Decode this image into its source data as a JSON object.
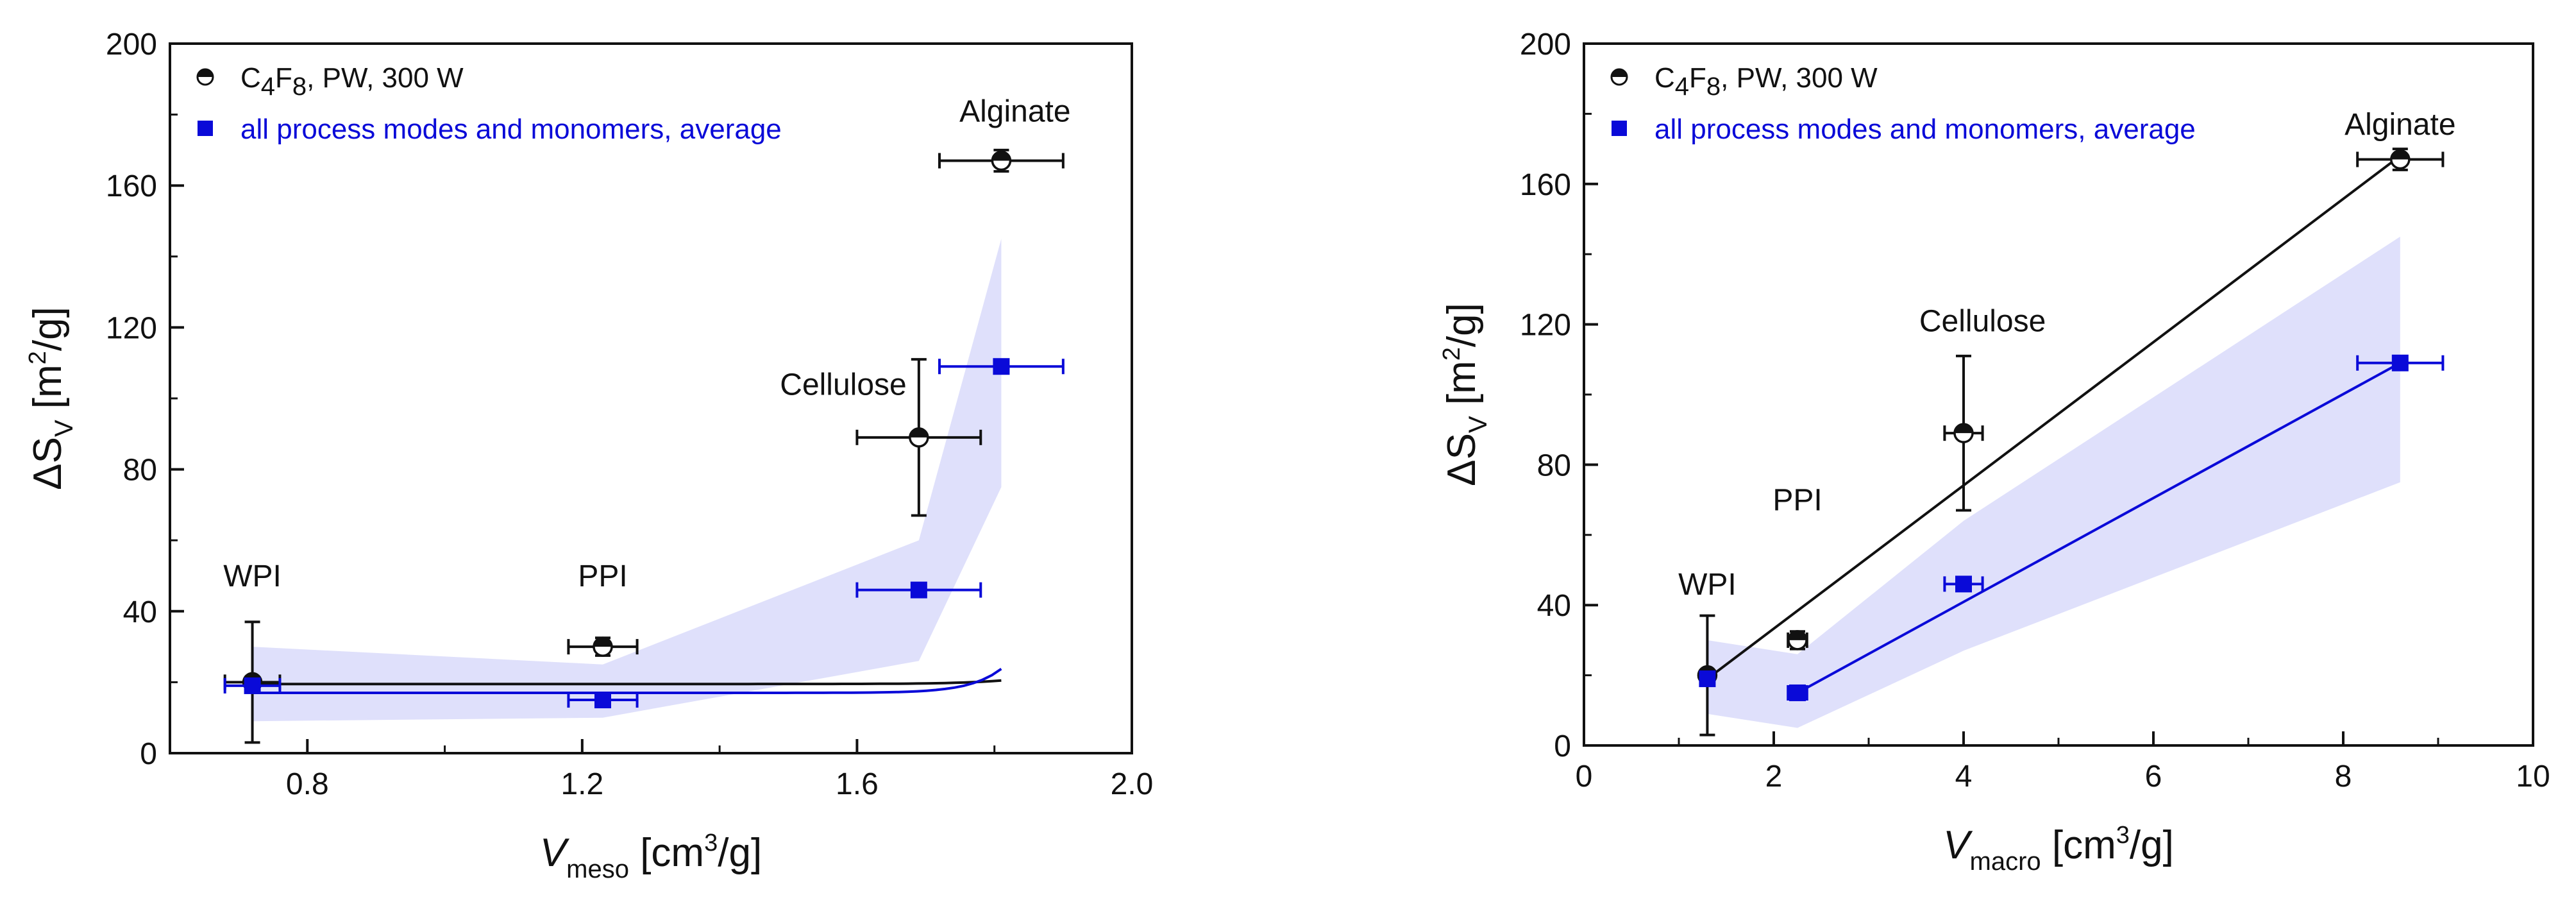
{
  "chart_data": [
    {
      "type": "scatter",
      "title": "",
      "xlabel": {
        "main": "V",
        "sub": "meso",
        "rest": " [cm",
        "sup": "3",
        "tail": "/g]"
      },
      "ylabel": {
        "main": "ΔS",
        "sub": "V",
        "rest": " [m",
        "sup": "2",
        "tail": "/g]"
      },
      "xlim": [
        0.6,
        2.0
      ],
      "ylim": [
        0,
        200
      ],
      "xticks": [
        0.8,
        1.2,
        1.6,
        2.0
      ],
      "xtick_labels": [
        "0.8",
        "1.2",
        "1.6",
        "2.0"
      ],
      "yticks": [
        0,
        40,
        80,
        120,
        160,
        200
      ],
      "ytick_labels": [
        "0",
        "40",
        "80",
        "120",
        "160",
        "200"
      ],
      "grid": false,
      "legend_position": "top-left",
      "legend": [
        {
          "key": "c4f8",
          "label_pre": "C",
          "sub1": "4",
          "mid": "F",
          "sub2": "8",
          "label_post": ", PW, 300 W",
          "color": "#111111",
          "marker": "half-circle"
        },
        {
          "key": "avg",
          "label": "all process modes and monomers, average",
          "color": "#0a0ad8",
          "marker": "square"
        }
      ],
      "annotations": [
        {
          "text": "WPI",
          "x": 0.72,
          "y": 47
        },
        {
          "text": "PPI",
          "x": 1.23,
          "y": 47
        },
        {
          "text": "Cellulose",
          "x": 1.58,
          "y": 101
        },
        {
          "text": "Alginate",
          "x": 1.83,
          "y": 178
        }
      ],
      "series": [
        {
          "name": "C4F8, PW, 300 W",
          "color": "#111111",
          "marker": "half-circle",
          "points": [
            {
              "label": "WPI",
              "x": 0.72,
              "y": 20,
              "xerr": 0.04,
              "yerr": 17
            },
            {
              "label": "PPI",
              "x": 1.23,
              "y": 30,
              "xerr": 0.05,
              "yerr": 2.5
            },
            {
              "label": "Cellulose",
              "x": 1.69,
              "y": 89,
              "xerr": 0.09,
              "yerr": 22
            },
            {
              "label": "Alginate",
              "x": 1.81,
              "y": 167,
              "xerr": 0.09,
              "yerr": 3
            }
          ],
          "fit": {
            "type": "exponential",
            "base": 19.5,
            "amp": 2.2e-13,
            "rate": 16.1,
            "x_from": 0.72,
            "x_to": 1.81
          }
        },
        {
          "name": "all process modes and monomers, average",
          "color": "#0a0ad8",
          "marker": "square",
          "points": [
            {
              "label": "WPI",
              "x": 0.72,
              "y": 19,
              "xerr": 0.04,
              "yerr": 0
            },
            {
              "label": "PPI",
              "x": 1.23,
              "y": 15,
              "xerr": 0.05,
              "yerr": 0
            },
            {
              "label": "Cellulose",
              "x": 1.69,
              "y": 46,
              "xerr": 0.09,
              "yerr": 0
            },
            {
              "label": "Alginate",
              "x": 1.81,
              "y": 109,
              "xerr": 0.09,
              "yerr": 0
            }
          ],
          "fit": {
            "type": "exponential",
            "base": 17,
            "amp": 2e-17,
            "rate": 22.3,
            "x_from": 0.72,
            "x_to": 1.81
          },
          "band": {
            "color": "#dfe0fb",
            "upper": [
              [
                0.72,
                30
              ],
              [
                1.23,
                25
              ],
              [
                1.69,
                60
              ],
              [
                1.81,
                145
              ]
            ],
            "lower": [
              [
                0.72,
                9
              ],
              [
                1.23,
                10
              ],
              [
                1.69,
                26
              ],
              [
                1.81,
                75
              ]
            ]
          }
        }
      ]
    },
    {
      "type": "scatter",
      "title": "",
      "xlabel": {
        "main": "V",
        "sub": "macro",
        "rest": " [cm",
        "sup": "3",
        "tail": "/g]"
      },
      "ylabel": {
        "main": "ΔS",
        "sub": "V",
        "rest": " [m",
        "sup": "2",
        "tail": "/g]"
      },
      "xlim": [
        0,
        10
      ],
      "ylim": [
        0,
        200
      ],
      "xticks": [
        0,
        2,
        4,
        6,
        8,
        10
      ],
      "xtick_labels": [
        "0",
        "2",
        "4",
        "6",
        "8",
        "10"
      ],
      "yticks": [
        0,
        40,
        80,
        120,
        160,
        200
      ],
      "ytick_labels": [
        "0",
        "40",
        "80",
        "120",
        "160",
        "200"
      ],
      "grid": false,
      "legend_position": "top-left",
      "legend": [
        {
          "key": "c4f8",
          "label_pre": "C",
          "sub1": "4",
          "mid": "F",
          "sub2": "8",
          "label_post": ", PW, 300 W",
          "color": "#111111",
          "marker": "half-circle"
        },
        {
          "key": "avg",
          "label": "all process modes and monomers, average",
          "color": "#0a0ad8",
          "marker": "square"
        }
      ],
      "annotations": [
        {
          "text": "WPI",
          "x": 1.3,
          "y": 43
        },
        {
          "text": "PPI",
          "x": 2.25,
          "y": 67
        },
        {
          "text": "Cellulose",
          "x": 4.2,
          "y": 118
        },
        {
          "text": "Alginate",
          "x": 8.6,
          "y": 174
        }
      ],
      "series": [
        {
          "name": "C4F8, PW, 300 W",
          "color": "#111111",
          "marker": "half-circle",
          "points": [
            {
              "label": "WPI",
              "x": 1.3,
              "y": 20,
              "xerr": 0.05,
              "yerr": 17
            },
            {
              "label": "PPI",
              "x": 2.25,
              "y": 30,
              "xerr": 0.1,
              "yerr": 2.5
            },
            {
              "label": "Cellulose",
              "x": 4.0,
              "y": 89,
              "xerr": 0.2,
              "yerr": 22
            },
            {
              "label": "Alginate",
              "x": 8.6,
              "y": 167,
              "xerr": 0.45,
              "yerr": 3
            }
          ],
          "fit": {
            "type": "linear",
            "x_from": 1.3,
            "y_from": 19,
            "x_to": 8.6,
            "y_to": 168
          }
        },
        {
          "name": "all process modes and monomers, average",
          "color": "#0a0ad8",
          "marker": "square",
          "points": [
            {
              "label": "WPI",
              "x": 1.3,
              "y": 19,
              "xerr": 0.05,
              "yerr": 0
            },
            {
              "label": "PPI",
              "x": 2.25,
              "y": 15,
              "xerr": 0.1,
              "yerr": 0
            },
            {
              "label": "Cellulose",
              "x": 4.0,
              "y": 46,
              "xerr": 0.2,
              "yerr": 0
            },
            {
              "label": "Alginate",
              "x": 8.6,
              "y": 109,
              "xerr": 0.45,
              "yerr": 0
            }
          ],
          "fit": {
            "type": "linear",
            "x_from": 2.25,
            "y_from": 15,
            "x_to": 8.6,
            "y_to": 109
          },
          "band": {
            "color": "#dfe0fb",
            "upper": [
              [
                1.3,
                30
              ],
              [
                2.25,
                26
              ],
              [
                4.0,
                64
              ],
              [
                8.6,
                145
              ]
            ],
            "lower": [
              [
                1.3,
                9
              ],
              [
                2.25,
                5
              ],
              [
                4.0,
                27
              ],
              [
                8.6,
                75
              ]
            ]
          }
        }
      ]
    }
  ]
}
